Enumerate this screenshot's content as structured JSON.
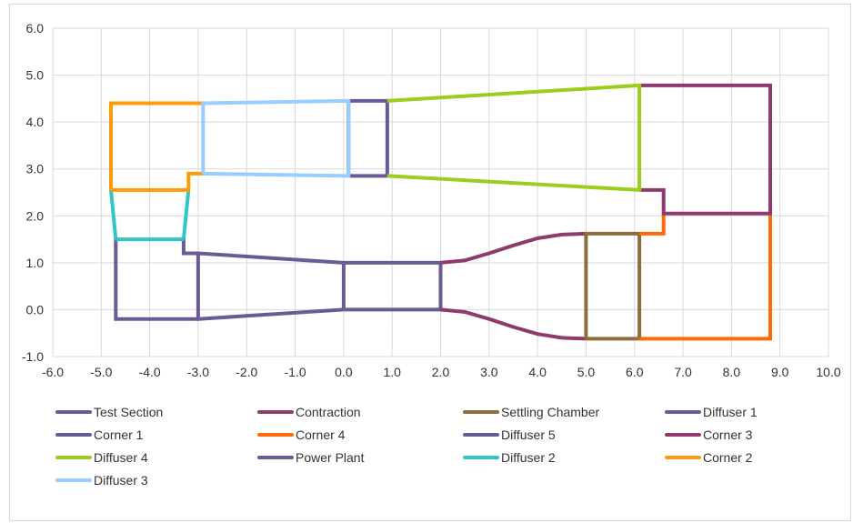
{
  "chart_data": {
    "type": "line",
    "title": "",
    "xlabel": "",
    "ylabel": "",
    "xlim": [
      -6.0,
      10.0
    ],
    "ylim": [
      -1.0,
      6.0
    ],
    "x_ticks": [
      "-6.0",
      "-5.0",
      "-4.0",
      "-3.0",
      "-2.0",
      "-1.0",
      "0.0",
      "1.0",
      "2.0",
      "3.0",
      "4.0",
      "5.0",
      "6.0",
      "7.0",
      "8.0",
      "9.0",
      "10.0"
    ],
    "y_ticks": [
      "-1.0",
      "0.0",
      "1.0",
      "2.0",
      "3.0",
      "4.0",
      "5.0",
      "6.0"
    ],
    "grid": true,
    "legend_position": "bottom",
    "series": [
      {
        "name": "Test Section",
        "color": "#6b5b95",
        "segments": [
          [
            [
              0.0,
              0.0
            ],
            [
              0.0,
              1.0
            ],
            [
              2.0,
              1.0
            ],
            [
              2.0,
              0.0
            ],
            [
              0.0,
              0.0
            ]
          ]
        ]
      },
      {
        "name": "Contraction",
        "color": "#8e3a6e",
        "segments": [
          [
            [
              2.0,
              1.0
            ],
            [
              2.5,
              1.05
            ],
            [
              3.0,
              1.2
            ],
            [
              3.5,
              1.37
            ],
            [
              4.0,
              1.52
            ],
            [
              4.5,
              1.6
            ],
            [
              5.0,
              1.62
            ]
          ],
          [
            [
              2.0,
              0.0
            ],
            [
              2.5,
              -0.05
            ],
            [
              3.0,
              -0.2
            ],
            [
              3.5,
              -0.37
            ],
            [
              4.0,
              -0.52
            ],
            [
              4.5,
              -0.6
            ],
            [
              5.0,
              -0.62
            ]
          ]
        ]
      },
      {
        "name": "Settling Chamber",
        "color": "#8b6e3c",
        "segments": [
          [
            [
              5.0,
              -0.62
            ],
            [
              5.0,
              1.62
            ],
            [
              6.1,
              1.62
            ],
            [
              6.1,
              -0.62
            ],
            [
              5.0,
              -0.62
            ]
          ]
        ]
      },
      {
        "name": "Diffuser 1",
        "color": "#6b5b95",
        "segments": [
          [
            [
              0.0,
              0.0
            ],
            [
              -3.0,
              -0.2
            ],
            [
              -3.0,
              1.2
            ],
            [
              0.0,
              1.0
            ]
          ]
        ]
      },
      {
        "name": "Corner 1",
        "color": "#6b5b95",
        "segments": [
          [
            [
              -3.0,
              -0.2
            ],
            [
              -4.7,
              -0.2
            ],
            [
              -4.7,
              1.5
            ]
          ],
          [
            [
              -3.0,
              1.2
            ],
            [
              -3.3,
              1.2
            ],
            [
              -3.3,
              1.5
            ]
          ]
        ]
      },
      {
        "name": "Corner 4",
        "color": "#fe6a0a",
        "segments": [
          [
            [
              6.1,
              -0.62
            ],
            [
              8.8,
              -0.62
            ],
            [
              8.8,
              2.05
            ]
          ],
          [
            [
              6.1,
              1.62
            ],
            [
              6.6,
              1.62
            ],
            [
              6.6,
              2.05
            ]
          ]
        ]
      },
      {
        "name": "Diffuser 5",
        "color": "#6b5b95",
        "segments": [
          [
            [
              0.1,
              2.85
            ],
            [
              0.9,
              2.85
            ],
            [
              0.9,
              4.45
            ],
            [
              0.1,
              4.45
            ]
          ]
        ]
      },
      {
        "name": "Corner 3",
        "color": "#8e3a6e",
        "segments": [
          [
            [
              6.1,
              4.78
            ],
            [
              8.8,
              4.78
            ],
            [
              8.8,
              2.05
            ],
            [
              6.6,
              2.05
            ],
            [
              6.6,
              2.55
            ],
            [
              6.1,
              2.55
            ]
          ]
        ]
      },
      {
        "name": "Diffuser 4",
        "color": "#9acd1c",
        "segments": [
          [
            [
              0.9,
              4.45
            ],
            [
              6.1,
              4.78
            ],
            [
              6.1,
              2.55
            ],
            [
              0.9,
              2.85
            ]
          ]
        ]
      },
      {
        "name": "Power Plant",
        "color": "#6b5b95",
        "segments": [
          [
            [
              0.1,
              2.85
            ],
            [
              0.1,
              4.45
            ]
          ]
        ]
      },
      {
        "name": "Diffuser 2",
        "color": "#31c6c6",
        "segments": [
          [
            [
              -4.7,
              1.5
            ],
            [
              -3.3,
              1.5
            ]
          ],
          [
            [
              -4.7,
              1.5
            ],
            [
              -4.8,
              2.55
            ]
          ],
          [
            [
              -3.3,
              1.5
            ],
            [
              -3.2,
              2.55
            ]
          ]
        ]
      },
      {
        "name": "Corner 2",
        "color": "#ff9a09",
        "segments": [
          [
            [
              -4.8,
              2.55
            ],
            [
              -4.8,
              4.4
            ],
            [
              -2.9,
              4.4
            ]
          ],
          [
            [
              -4.8,
              2.55
            ],
            [
              -3.2,
              2.55
            ],
            [
              -3.2,
              2.9
            ],
            [
              -2.9,
              2.9
            ]
          ]
        ]
      },
      {
        "name": "Diffuser 3",
        "color": "#99ccff",
        "segments": [
          [
            [
              -2.9,
              2.9
            ],
            [
              -2.9,
              4.4
            ],
            [
              0.1,
              4.45
            ],
            [
              0.1,
              2.85
            ],
            [
              -2.9,
              2.9
            ]
          ]
        ]
      }
    ]
  }
}
